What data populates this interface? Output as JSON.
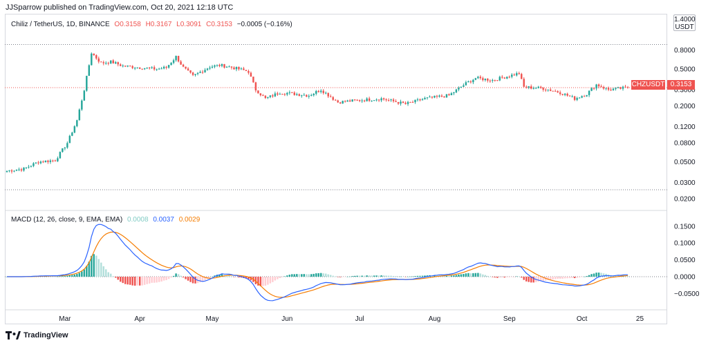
{
  "header": {
    "publisher": "JJSparrow published on TradingView.com, Oct 20, 2021 12:18 UTC"
  },
  "legend": {
    "symbol": "Chiliz / TetherUS, 1D, BINANCE",
    "open": "O0.3158",
    "high": "H0.3167",
    "low": "L0.3091",
    "close": "C0.3153",
    "change": "−0.0005 (−0.16%)"
  },
  "macd_legend": {
    "label": "MACD (12, 26, close, 9, EMA, EMA)",
    "histogram": "0.0008",
    "macd": "0.0037",
    "signal": "0.0029"
  },
  "unit_box": {
    "line1": "1.4000",
    "line2": "USDT"
  },
  "price_tag": {
    "symbol": "CHZUSDT",
    "value": "0.3153"
  },
  "footer": {
    "brand": "TradingView"
  },
  "colors": {
    "up": "#26a69a",
    "down": "#ef5350",
    "macd": "#2962ff",
    "signal": "#f57c00",
    "hist_up": "#26a69a",
    "hist_up_light": "#b2dfdb",
    "hist_down": "#ef5350",
    "hist_down_light": "#ffcdd2"
  },
  "chart_data": [
    {
      "type": "candlestick",
      "title": "Chiliz / TetherUS, 1D, BINANCE",
      "yscale": "log",
      "ylim": [
        0.02,
        1.4
      ],
      "y_ticks": [
        "0.8000",
        "0.5000",
        "0.3000",
        "0.2000",
        "0.1200",
        "0.0800",
        "0.0500",
        "0.0300",
        "0.0200"
      ],
      "y_tick_values": [
        0.8,
        0.5,
        0.3,
        0.2,
        0.12,
        0.08,
        0.05,
        0.03,
        0.02
      ],
      "x_ticks": [
        "Mar",
        "Apr",
        "May",
        "Jun",
        "Jul",
        "Aug",
        "Sep",
        "Oct",
        "25"
      ],
      "x_tick_dates": [
        "2021-03-01",
        "2021-04-01",
        "2021-05-01",
        "2021-06-01",
        "2021-07-01",
        "2021-08-01",
        "2021-09-01",
        "2021-10-01",
        "2021-10-25"
      ],
      "start_date": "2021-02-05",
      "end_date": "2021-10-20",
      "current_price": 0.3153,
      "guide_levels": [
        0.92,
        0.025
      ],
      "close_anchors": [
        [
          "2021-02-05",
          0.04
        ],
        [
          "2021-02-12",
          0.042
        ],
        [
          "2021-02-18",
          0.05
        ],
        [
          "2021-02-25",
          0.052
        ],
        [
          "2021-03-02",
          0.08
        ],
        [
          "2021-03-06",
          0.14
        ],
        [
          "2021-03-09",
          0.3
        ],
        [
          "2021-03-12",
          0.75
        ],
        [
          "2021-03-16",
          0.58
        ],
        [
          "2021-03-20",
          0.6
        ],
        [
          "2021-03-25",
          0.54
        ],
        [
          "2021-04-01",
          0.52
        ],
        [
          "2021-04-08",
          0.5
        ],
        [
          "2021-04-12",
          0.52
        ],
        [
          "2021-04-16",
          0.68
        ],
        [
          "2021-04-19",
          0.52
        ],
        [
          "2021-04-23",
          0.42
        ],
        [
          "2021-04-30",
          0.53
        ],
        [
          "2021-05-04",
          0.55
        ],
        [
          "2021-05-08",
          0.53
        ],
        [
          "2021-05-12",
          0.5
        ],
        [
          "2021-05-16",
          0.47
        ],
        [
          "2021-05-19",
          0.3
        ],
        [
          "2021-05-23",
          0.24
        ],
        [
          "2021-05-29",
          0.28
        ],
        [
          "2021-06-04",
          0.27
        ],
        [
          "2021-06-10",
          0.26
        ],
        [
          "2021-06-15",
          0.3
        ],
        [
          "2021-06-22",
          0.22
        ],
        [
          "2021-06-30",
          0.23
        ],
        [
          "2021-07-10",
          0.24
        ],
        [
          "2021-07-20",
          0.21
        ],
        [
          "2021-07-28",
          0.24
        ],
        [
          "2021-08-07",
          0.26
        ],
        [
          "2021-08-14",
          0.35
        ],
        [
          "2021-08-18",
          0.4
        ],
        [
          "2021-08-25",
          0.38
        ],
        [
          "2021-09-05",
          0.45
        ],
        [
          "2021-09-07",
          0.32
        ],
        [
          "2021-09-15",
          0.31
        ],
        [
          "2021-09-22",
          0.28
        ],
        [
          "2021-09-28",
          0.24
        ],
        [
          "2021-10-03",
          0.27
        ],
        [
          "2021-10-07",
          0.34
        ],
        [
          "2021-10-12",
          0.3
        ],
        [
          "2021-10-20",
          0.3153
        ]
      ]
    },
    {
      "type": "line",
      "title": "MACD (12, 26, close, 9, EMA, EMA)",
      "ylim": [
        -0.09,
        0.17
      ],
      "y_ticks": [
        "0.1500",
        "0.1000",
        "0.0500",
        "0.0000",
        "−0.0500"
      ],
      "y_tick_values": [
        0.15,
        0.1,
        0.05,
        0.0,
        -0.05
      ],
      "series": [
        {
          "name": "MACD",
          "value": "0.0037"
        },
        {
          "name": "Signal",
          "value": "0.0029"
        },
        {
          "name": "Histogram",
          "value": "0.0008"
        }
      ]
    }
  ]
}
